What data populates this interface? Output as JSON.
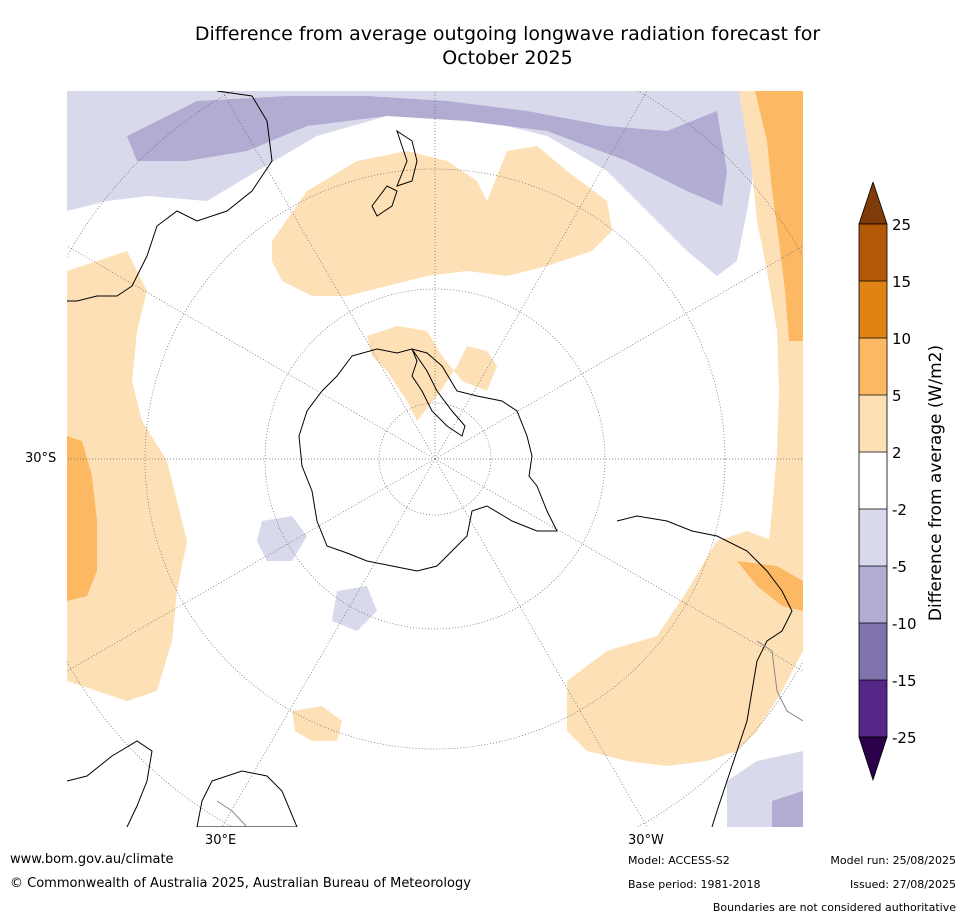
{
  "title_line1": "Difference from average outgoing longwave radiation forecast for",
  "title_line2": "October 2025",
  "map_labels": {
    "lat_30s": "30°S",
    "lon_30e": "30°E",
    "lon_30w": "30°W"
  },
  "colorbar": {
    "title": "Difference from average (W/m2)",
    "ticks": [
      "25",
      "15",
      "10",
      "5",
      "2",
      "-2",
      "-5",
      "-10",
      "-15",
      "-25"
    ],
    "colors": {
      "over": "#7f3b08",
      "c15_25": "#b35806",
      "c10_15": "#e08214",
      "c5_10": "#fdb863",
      "c2_5": "#fee0b6",
      "neutral": "#ffffff",
      "cm2_m5": "#d8daeb",
      "cm5_m10": "#b2abd2",
      "cm10_m15": "#8073ac",
      "cm15_m25": "#542788",
      "under": "#2d004b"
    }
  },
  "footer": {
    "website": "www.bom.gov.au/climate",
    "copyright": "© Commonwealth of Australia 2025, Australian Bureau of Meteorology",
    "model": "Model: ACCESS-S2",
    "base_period": "Base period: 1981-2018",
    "model_run": "Model run: 25/08/2025",
    "issued": "Issued: 27/08/2025",
    "disclaimer": "Boundaries are not considered authoritative"
  }
}
